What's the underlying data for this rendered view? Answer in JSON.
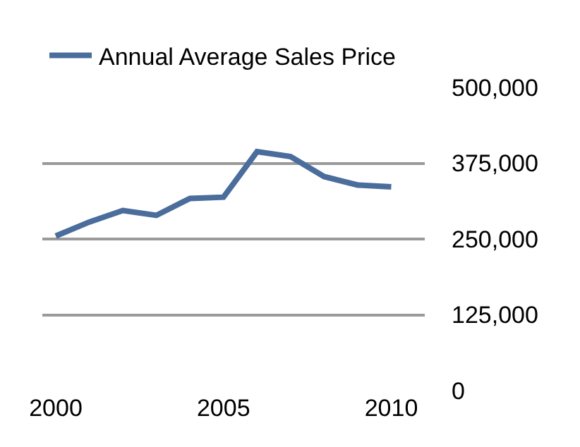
{
  "chart_data": {
    "type": "line",
    "x": [
      2000,
      2001,
      2002,
      2003,
      2004,
      2005,
      2006,
      2007,
      2008,
      2009,
      2010
    ],
    "series": [
      {
        "name": "Annual Average Sales Price",
        "color": "#4a6d9c",
        "values": [
          255000,
          278000,
          297000,
          289000,
          317000,
          319000,
          394000,
          386000,
          353000,
          339000,
          336000
        ]
      }
    ],
    "xlim": [
      1999.6,
      2011
    ],
    "xticks": [
      2000,
      2005,
      2010
    ],
    "ylim": [
      0,
      500000
    ],
    "yticks": [
      {
        "value": 0,
        "label": "0"
      },
      {
        "value": 125000,
        "label": "125,000"
      },
      {
        "value": 250000,
        "label": "250,000"
      },
      {
        "value": 375000,
        "label": "375,000"
      },
      {
        "value": 500000,
        "label": "500,000"
      }
    ],
    "grid": "y",
    "legend": "top left",
    "marker": "none",
    "line_style": "solid"
  }
}
